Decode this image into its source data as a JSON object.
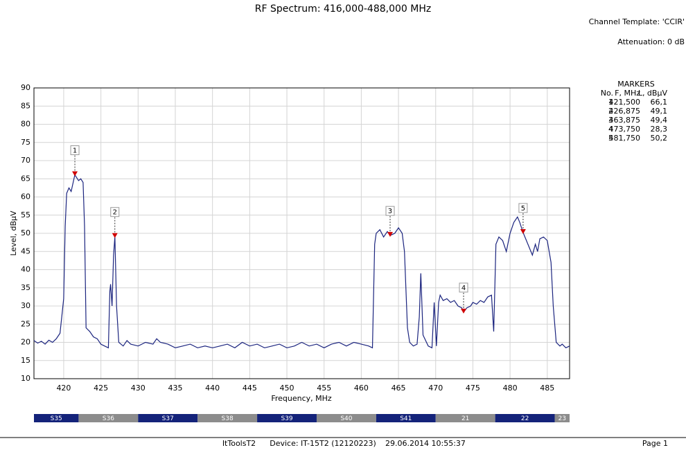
{
  "chart_data": {
    "type": "line",
    "title": "RF Spectrum:  416,000-488,000 MHz",
    "template": "Channel Template: 'CCIR'",
    "attenuation": "Attenuation: 0 dB",
    "x_label": "Frequency, MHz",
    "y_label": "Level, dBμV",
    "xlim": [
      416,
      488
    ],
    "ylim": [
      10,
      90
    ],
    "xticks": [
      420,
      425,
      430,
      435,
      440,
      445,
      450,
      455,
      460,
      465,
      470,
      475,
      480,
      485
    ],
    "yticks": [
      10,
      15,
      20,
      25,
      30,
      35,
      40,
      45,
      50,
      55,
      60,
      65,
      70,
      75,
      80,
      85,
      90
    ],
    "grid": true,
    "series": [
      {
        "name": "Spectrum",
        "color": "#1a237e",
        "x": [
          416,
          416.5,
          417,
          417.5,
          418,
          418.5,
          419,
          419.5,
          420,
          420.2,
          420.4,
          420.7,
          421,
          421.5,
          422,
          422.3,
          422.6,
          422.8,
          423,
          423.5,
          424,
          424.5,
          425,
          425.5,
          426,
          426.2,
          426.3,
          426.5,
          426.7,
          426.875,
          427.1,
          427.4,
          428,
          428.5,
          429,
          430,
          431,
          432,
          432.5,
          433,
          434,
          435,
          436,
          437,
          438,
          439,
          440,
          441,
          442,
          443,
          444,
          445,
          446,
          447,
          448,
          449,
          450,
          451,
          452,
          453,
          454,
          455,
          456,
          457,
          458,
          459,
          460,
          461,
          461.5,
          461.8,
          462,
          462.5,
          463,
          463.5,
          463.875,
          464.5,
          465,
          465.5,
          465.8,
          466.2,
          466.5,
          467,
          467.5,
          467.8,
          468,
          468.3,
          469,
          469.5,
          469.8,
          470.1,
          470.4,
          470.6,
          471,
          471.5,
          472,
          472.5,
          473,
          473.5,
          473.75,
          474.2,
          474.7,
          475,
          475.5,
          476,
          476.5,
          477,
          477.5,
          477.8,
          478.1,
          478.5,
          479,
          479.5,
          480,
          480.5,
          481,
          481.3,
          481.75,
          482.2,
          482.6,
          483,
          483.4,
          483.7,
          484,
          484.5,
          485,
          485.5,
          485.8,
          486.2,
          486.7,
          487,
          487.5,
          488
        ],
        "values": [
          20.5,
          19.8,
          20.3,
          19.5,
          20.6,
          20,
          21,
          22.5,
          32,
          52,
          61,
          62.5,
          61.5,
          66.1,
          64.5,
          65,
          64,
          52,
          24,
          23,
          21.5,
          21,
          19.5,
          19,
          18.5,
          34,
          36,
          30,
          44,
          49.1,
          30,
          20,
          19,
          20.5,
          19.5,
          19,
          20,
          19.5,
          21,
          20,
          19.5,
          18.5,
          19,
          19.5,
          18.5,
          19,
          18.5,
          19,
          19.5,
          18.5,
          20,
          19,
          19.5,
          18.5,
          19,
          19.5,
          18.5,
          19,
          20,
          19,
          19.5,
          18.5,
          19.5,
          20,
          19,
          20,
          19.5,
          19,
          18.5,
          47,
          50,
          51,
          49,
          50.5,
          49.4,
          50,
          51.5,
          50,
          45,
          24,
          20,
          19,
          19.5,
          27,
          39,
          22,
          19,
          18.5,
          31,
          19,
          31,
          33,
          31.5,
          32,
          31,
          31.5,
          30,
          29.5,
          28.3,
          29.5,
          30,
          31,
          30.5,
          31.5,
          31,
          32.5,
          33,
          23,
          47,
          49,
          48,
          45,
          50,
          53,
          54.5,
          53,
          50.2,
          48,
          46,
          44,
          47,
          45,
          48.5,
          49,
          48,
          42,
          30,
          20,
          19,
          19.5,
          18.5,
          19
        ]
      }
    ],
    "markers": [
      {
        "label": "1",
        "x": 421.5,
        "y": 66.1
      },
      {
        "label": "2",
        "x": 426.875,
        "y": 49.1
      },
      {
        "label": "3",
        "x": 463.875,
        "y": 49.4
      },
      {
        "label": "4",
        "x": 473.75,
        "y": 28.3
      },
      {
        "label": "5",
        "x": 481.75,
        "y": 50.2
      }
    ],
    "marker_table": {
      "title": "MARKERS",
      "header": [
        "No.",
        "F, MHz",
        "L, dBμV"
      ],
      "rows": [
        [
          "1",
          "421,500",
          "66,1"
        ],
        [
          "2",
          "426,875",
          "49,1"
        ],
        [
          "3",
          "463,875",
          "49,4"
        ],
        [
          "4",
          "473,750",
          "28,3"
        ],
        [
          "5",
          "481,750",
          "50,2"
        ]
      ]
    },
    "channels": [
      {
        "label": "S35",
        "from": 414,
        "to": 422,
        "color": "#14237a"
      },
      {
        "label": "S36",
        "from": 422,
        "to": 430,
        "color": "#8c8c8c"
      },
      {
        "label": "S37",
        "from": 430,
        "to": 438,
        "color": "#14237a"
      },
      {
        "label": "S38",
        "from": 438,
        "to": 446,
        "color": "#8c8c8c"
      },
      {
        "label": "S39",
        "from": 446,
        "to": 454,
        "color": "#14237a"
      },
      {
        "label": "S40",
        "from": 454,
        "to": 462,
        "color": "#8c8c8c"
      },
      {
        "label": "S41",
        "from": 462,
        "to": 470,
        "color": "#14237a"
      },
      {
        "label": "21",
        "from": 470,
        "to": 478,
        "color": "#8c8c8c"
      },
      {
        "label": "22",
        "from": 478,
        "to": 486,
        "color": "#14237a"
      },
      {
        "label": "23",
        "from": 486,
        "to": 494,
        "color": "#8c8c8c"
      }
    ],
    "footer": {
      "app": "ItToolsT2",
      "device": "Device: IT-15T2 (12120223)",
      "date": "29.06.2014 10:55:37",
      "page": "Page 1"
    }
  }
}
